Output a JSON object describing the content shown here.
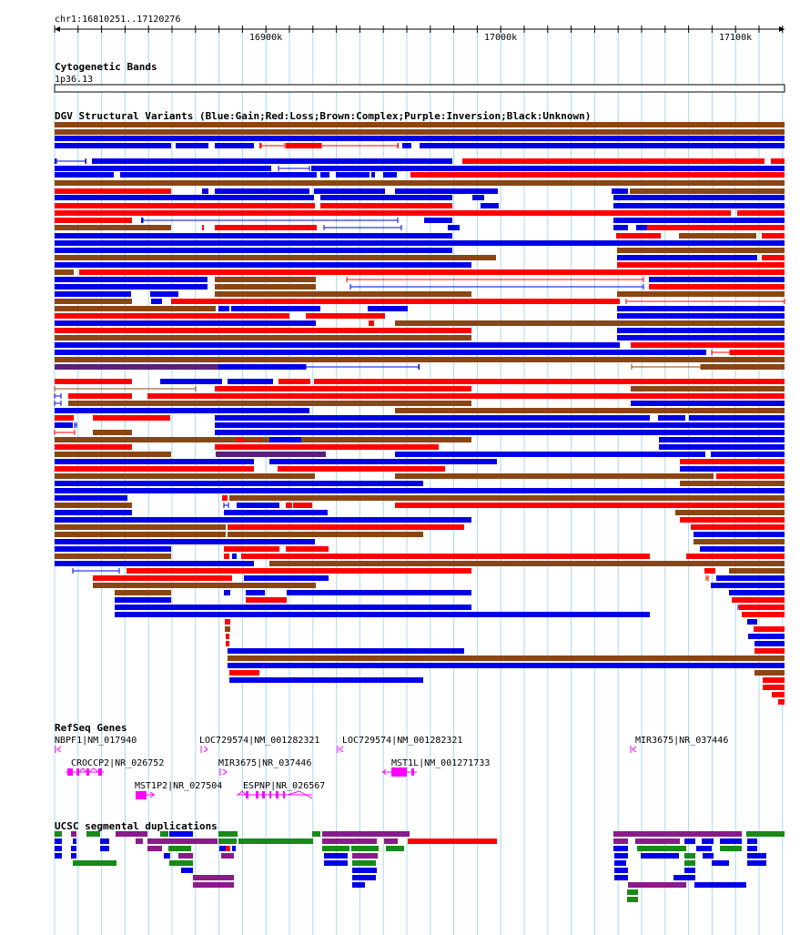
{
  "header": {
    "position": "chr1:16810251..17120276",
    "ticks": [
      "16900k",
      "17000k",
      "17100k"
    ]
  },
  "tracks": {
    "cytoband": {
      "title": "Cytogenetic Bands",
      "band": "1p36.13"
    },
    "dgv": {
      "title": "DGV Structural Variants (Blue:Gain;Red:Loss;Brown:Complex;Purple:Inversion;Black:Unknown)"
    },
    "refseq": {
      "title": "RefSeq Genes"
    },
    "segdup": {
      "title": "UCSC segmental duplications"
    }
  },
  "genes": [
    "NBPF1|NM_017940",
    "LOC729574|NM_001282321",
    "LOC729574|NM_001282321",
    "MIR3675|NR_037446",
    "CROCCP2|NR_026752",
    "MIR3675|NR_037446",
    "MST1L|NM_001271733",
    "MST1P2|NR_027504",
    "ESPNP|NR_026567"
  ],
  "colors": {
    "gain": "#0000e6",
    "loss": "#ff0000",
    "complex": "#8b4513",
    "inversion": "#5a2078",
    "refseq": "#ff00ff",
    "segdup_green": "#178a17",
    "segdup_purple": "#8b1a8b",
    "segdup_blue": "#0000e6",
    "segdup_red": "#ff0000",
    "grid": "#a8d8ec"
  }
}
